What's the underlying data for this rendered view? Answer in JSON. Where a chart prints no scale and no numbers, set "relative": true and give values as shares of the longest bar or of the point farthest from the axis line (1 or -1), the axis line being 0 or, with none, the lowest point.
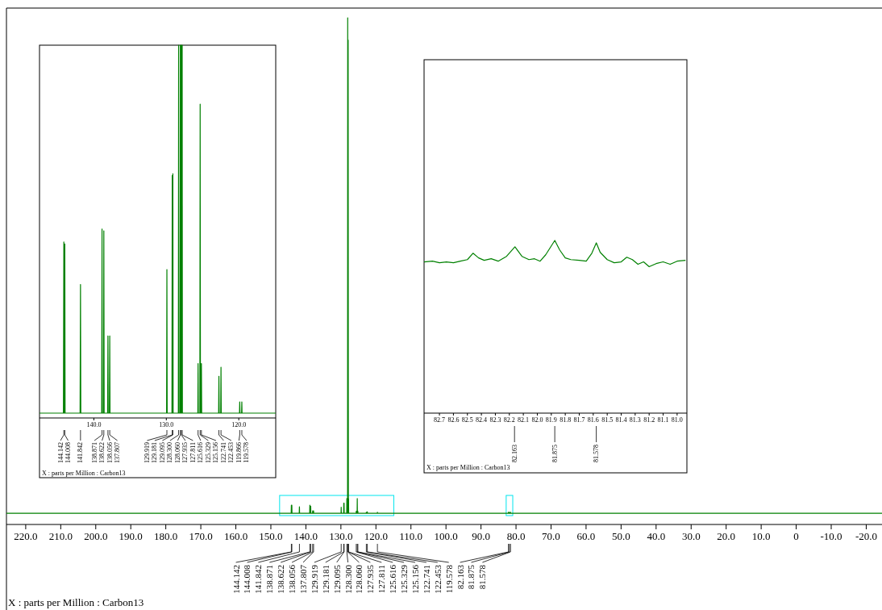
{
  "chart_data": [
    {
      "type": "line",
      "relative": true,
      "xlabel": "X : parts per Million : Carbon13",
      "xlim": [
        225.5,
        -24.5
      ],
      "xticks": [
        {
          "value": 220,
          "label": "220.0"
        },
        {
          "value": 210,
          "label": "210.0"
        },
        {
          "value": 200,
          "label": "200.0"
        },
        {
          "value": 190,
          "label": "190.0"
        },
        {
          "value": 180,
          "label": "180.0"
        },
        {
          "value": 170,
          "label": "170.0"
        },
        {
          "value": 160,
          "label": "160.0"
        },
        {
          "value": 150,
          "label": "150.0"
        },
        {
          "value": 140,
          "label": "140.0"
        },
        {
          "value": 130,
          "label": "130.0"
        },
        {
          "value": 120,
          "label": "120.0"
        },
        {
          "value": 110,
          "label": "110.0"
        },
        {
          "value": 100,
          "label": "100.0"
        },
        {
          "value": 90,
          "label": "90.0"
        },
        {
          "value": 80,
          "label": "80.0"
        },
        {
          "value": 70,
          "label": "70.0"
        },
        {
          "value": 60,
          "label": "60.0"
        },
        {
          "value": 50,
          "label": "50.0"
        },
        {
          "value": 40,
          "label": "40.0"
        },
        {
          "value": 30,
          "label": "30.0"
        },
        {
          "value": 20,
          "label": "20.0"
        },
        {
          "value": 10,
          "label": "10.0"
        },
        {
          "value": 0,
          "label": "0"
        },
        {
          "value": -10,
          "label": "-10.0"
        },
        {
          "value": -20,
          "label": "-20.0"
        }
      ],
      "series": [
        {
          "color": "#008000",
          "x": [
            225.5,
            144.2,
            144.142,
            144.1,
            144.05,
            144.008,
            143.97,
            141.9,
            141.842,
            141.8,
            138.92,
            138.871,
            138.83,
            138.66,
            138.622,
            138.58,
            138.1,
            138.056,
            138.02,
            137.85,
            137.807,
            137.77,
            129.96,
            129.919,
            129.88,
            129.22,
            129.181,
            129.14,
            129.13,
            129.095,
            129.06,
            128.34,
            128.3,
            128.26,
            128.1,
            128.06,
            128.0,
            127.97,
            127.935,
            127.87,
            127.84,
            127.811,
            127.78,
            125.65,
            125.616,
            125.58,
            125.37,
            125.329,
            125.29,
            125.19,
            125.156,
            125.12,
            122.78,
            122.741,
            122.7,
            122.49,
            122.453,
            122.42,
            119.61,
            119.578,
            119.55,
            82.2,
            82.163,
            82.13,
            81.91,
            81.875,
            81.84,
            81.61,
            81.578,
            81.55,
            -24.5
          ],
          "values": [
            0.022,
            0.022,
            0.038,
            0.022,
            0.022,
            0.038,
            0.022,
            0.022,
            0.035,
            0.022,
            0.022,
            0.038,
            0.022,
            0.022,
            0.036,
            0.022,
            0.022,
            0.027,
            0.022,
            0.022,
            0.027,
            0.022,
            0.022,
            0.034,
            0.022,
            0.022,
            0.042,
            0.022,
            0.022,
            0.042,
            0.022,
            0.022,
            0.051,
            0.022,
            0.022,
            1,
            0.022,
            0.022,
            0.956,
            0.022,
            0.022,
            0.051,
            0.022,
            0.022,
            0.026,
            0.022,
            0.022,
            0.051,
            0.022,
            0.022,
            0.026,
            0.022,
            0.022,
            0.024,
            0.022,
            0.022,
            0.025,
            0.022,
            0.022,
            0.024,
            0.022,
            0.022,
            0.024,
            0.022,
            0.022,
            0.024,
            0.022,
            0.022,
            0.024,
            0.022,
            0.022
          ]
        }
      ],
      "annotations": [
        {
          "text": "144.142",
          "x": 144.142
        },
        {
          "text": "144.008",
          "x": 144.008
        },
        {
          "text": "141.842",
          "x": 141.842
        },
        {
          "text": "138.871",
          "x": 138.871
        },
        {
          "text": "138.622",
          "x": 138.622
        },
        {
          "text": "138.056",
          "x": 138.056
        },
        {
          "text": "137.807",
          "x": 137.807
        },
        {
          "text": "129.919",
          "x": 129.919
        },
        {
          "text": "129.181",
          "x": 129.181
        },
        {
          "text": "129.095",
          "x": 129.095
        },
        {
          "text": "128.300",
          "x": 128.3
        },
        {
          "text": "128.060",
          "x": 128.06
        },
        {
          "text": "127.935",
          "x": 127.935
        },
        {
          "text": "127.811",
          "x": 127.811
        },
        {
          "text": "125.616",
          "x": 125.616
        },
        {
          "text": "125.329",
          "x": 125.329
        },
        {
          "text": "125.156",
          "x": 125.156
        },
        {
          "text": "122.741",
          "x": 122.741
        },
        {
          "text": "122.453",
          "x": 122.453
        },
        {
          "text": "119.578",
          "x": 119.578
        },
        {
          "text": "82.163",
          "x": 82.163
        },
        {
          "text": "81.875",
          "x": 81.875
        },
        {
          "text": "81.578",
          "x": 81.578
        }
      ]
    },
    {
      "type": "line",
      "relative": true,
      "xlabel": "X : parts per Million : Carbon13",
      "xlim": [
        147.5,
        114.9
      ],
      "xticks": [
        {
          "value": 140,
          "label": "140.0"
        },
        {
          "value": 130,
          "label": "130.0"
        },
        {
          "value": 120,
          "label": "120.0"
        }
      ],
      "series": [
        {
          "color": "#008000",
          "x": [
            147.5,
            144.2,
            144.142,
            144.1,
            144.05,
            144.008,
            143.97,
            141.9,
            141.842,
            141.8,
            138.92,
            138.871,
            138.83,
            138.66,
            138.622,
            138.58,
            138.1,
            138.056,
            138.02,
            137.85,
            137.807,
            137.77,
            129.96,
            129.919,
            129.88,
            129.22,
            129.181,
            129.14,
            129.13,
            129.095,
            129.06,
            128.34,
            128.3,
            128.26,
            128.1,
            128.06,
            128.0,
            127.97,
            127.935,
            127.87,
            127.84,
            127.811,
            127.78,
            125.65,
            125.616,
            125.58,
            125.37,
            125.329,
            125.29,
            125.19,
            125.156,
            125.12,
            122.78,
            122.741,
            122.7,
            122.49,
            122.453,
            122.42,
            119.9,
            119.866,
            119.83,
            119.61,
            119.578,
            119.55,
            114.9
          ],
          "values": [
            0.013,
            0.013,
            0.472,
            0.013,
            0.013,
            0.467,
            0.013,
            0.013,
            0.358,
            0.013,
            0.013,
            0.507,
            0.013,
            0.013,
            0.502,
            0.013,
            0.013,
            0.22,
            0.013,
            0.013,
            0.22,
            0.013,
            0.013,
            0.398,
            0.013,
            0.013,
            0.65,
            0.013,
            0.013,
            0.655,
            0.013,
            0.013,
            1,
            0.013,
            0.013,
            1,
            0.013,
            0.013,
            1,
            0.013,
            0.013,
            1,
            0.013,
            0.013,
            0.146,
            0.013,
            0.013,
            0.842,
            0.013,
            0.013,
            0.146,
            0.013,
            0.013,
            0.112,
            0.013,
            0.013,
            0.136,
            0.013,
            0.013,
            0.043,
            0.013,
            0.013,
            0.043,
            0.013,
            0.013
          ]
        }
      ],
      "annotations": [
        {
          "text": "144.142",
          "x": 144.142
        },
        {
          "text": "144.008",
          "x": 144.008
        },
        {
          "text": "141.842",
          "x": 141.842
        },
        {
          "text": "138.871",
          "x": 138.871
        },
        {
          "text": "138.622",
          "x": 138.622
        },
        {
          "text": "138.056",
          "x": 138.056
        },
        {
          "text": "137.807",
          "x": 137.807
        },
        {
          "text": "129.919",
          "x": 129.919
        },
        {
          "text": "129.181",
          "x": 129.181
        },
        {
          "text": "129.095",
          "x": 129.095
        },
        {
          "text": "128.300",
          "x": 128.3
        },
        {
          "text": "128.060",
          "x": 128.06
        },
        {
          "text": "127.935",
          "x": 127.935
        },
        {
          "text": "127.811",
          "x": 127.811
        },
        {
          "text": "125.616",
          "x": 125.616
        },
        {
          "text": "125.329",
          "x": 125.329
        },
        {
          "text": "125.156",
          "x": 125.156
        },
        {
          "text": "122.741",
          "x": 122.741
        },
        {
          "text": "122.453",
          "x": 122.453
        },
        {
          "text": "119.866",
          "x": 119.866
        },
        {
          "text": "119.578",
          "x": 119.578
        }
      ]
    },
    {
      "type": "line",
      "relative": true,
      "xlabel": "X : parts per Million : Carbon13",
      "xlim": [
        82.81,
        80.93
      ],
      "xticks": [
        82.7,
        82.6,
        82.5,
        82.4,
        82.3,
        82.2,
        82.1,
        {
          "value": 82,
          "label": "82.0"
        },
        81.9,
        81.8,
        81.7,
        81.6,
        81.5,
        81.4,
        81.3,
        81.2,
        81.1,
        {
          "value": 81,
          "label": "81.0"
        }
      ],
      "series": [
        {
          "color": "#008000",
          "x": [
            82.81,
            82.75,
            82.7,
            82.65,
            82.6,
            82.55,
            82.5,
            82.46,
            82.42,
            82.38,
            82.33,
            82.28,
            82.22,
            82.16,
            82.11,
            82.06,
            82.02,
            81.98,
            81.94,
            81.875,
            81.84,
            81.8,
            81.76,
            81.7,
            81.65,
            81.61,
            81.578,
            81.55,
            81.5,
            81.45,
            81.4,
            81.36,
            81.32,
            81.28,
            81.24,
            81.2,
            81.15,
            81.1,
            81.05,
            81.0,
            80.94
          ],
          "values": [
            0.876,
            0.88,
            0.871,
            0.876,
            0.871,
            0.88,
            0.889,
            0.926,
            0.899,
            0.885,
            0.894,
            0.88,
            0.908,
            0.963,
            0.908,
            0.889,
            0.894,
            0.88,
            0.917,
            1,
            0.945,
            0.899,
            0.889,
            0.885,
            0.88,
            0.926,
            0.986,
            0.931,
            0.889,
            0.871,
            0.876,
            0.903,
            0.889,
            0.862,
            0.876,
            0.848,
            0.866,
            0.876,
            0.862,
            0.88,
            0.885
          ]
        }
      ],
      "annotations": [
        {
          "text": "82.163",
          "x": 82.163
        },
        {
          "text": "81.875",
          "x": 81.875
        },
        {
          "text": "81.578",
          "x": 81.578
        }
      ]
    }
  ]
}
